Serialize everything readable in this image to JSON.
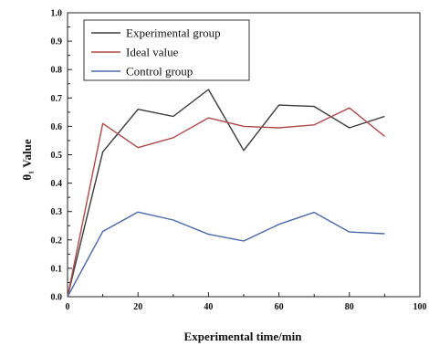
{
  "chart_data": {
    "type": "line",
    "title": "",
    "xlabel": "Experimental time/min",
    "ylabel": "θ₁ Value",
    "xlim": [
      0,
      100
    ],
    "ylim": [
      0,
      1.0
    ],
    "x_ticks": [
      "0",
      "20",
      "40",
      "60",
      "80",
      "100"
    ],
    "y_ticks": [
      "0.0",
      "0.1",
      "0.2",
      "0.3",
      "0.4",
      "0.5",
      "0.6",
      "0.7",
      "0.8",
      "0.9",
      "1.0"
    ],
    "grid": false,
    "legend_position": "top-left",
    "x": [
      0,
      10,
      20,
      30,
      40,
      50,
      60,
      70,
      80,
      90
    ],
    "series": [
      {
        "name": "Experimental group",
        "color": "#3a3a3a",
        "values": [
          0.0,
          0.51,
          0.66,
          0.635,
          0.73,
          0.515,
          0.675,
          0.67,
          0.595,
          0.635
        ]
      },
      {
        "name": "Ideal value",
        "color": "#b04a4a",
        "values": [
          0.0,
          0.61,
          0.525,
          0.56,
          0.63,
          0.6,
          0.595,
          0.605,
          0.665,
          0.565
        ]
      },
      {
        "name": "Control group",
        "color": "#4a68a8",
        "values": [
          0.0,
          0.23,
          0.298,
          0.27,
          0.22,
          0.196,
          0.255,
          0.297,
          0.228,
          0.222
        ]
      }
    ]
  }
}
